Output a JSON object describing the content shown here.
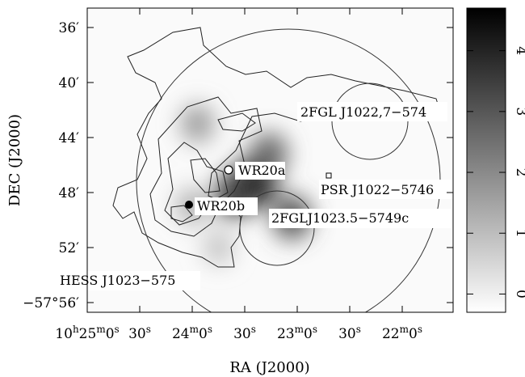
{
  "chart_data": {
    "type": "heatmap",
    "title": "",
    "xlabel": "RA (J2000)",
    "ylabel": "DEC (J2000)",
    "x_ticks": [
      {
        "h": "10",
        "m": "25",
        "s": "0",
        "label_type": "full"
      },
      {
        "s": "30",
        "label_type": "sec"
      },
      {
        "m": "24",
        "s": "0",
        "label_type": "min"
      },
      {
        "s": "30",
        "label_type": "sec"
      },
      {
        "m": "23",
        "s": "0",
        "label_type": "min"
      },
      {
        "s": "30",
        "label_type": "sec"
      },
      {
        "m": "22",
        "s": "0",
        "label_type": "min"
      }
    ],
    "y_ticks": [
      "36′",
      "40′",
      "44′",
      "48′",
      "52′",
      "−57°56′"
    ],
    "colorbar": {
      "ticks": [
        "0",
        "1",
        "2",
        "3",
        "4"
      ],
      "range": [
        -0.3,
        4.7
      ],
      "colormap": "grayscale",
      "low_color": "#ffffff",
      "high_color": "#000000"
    },
    "intensity_blobs": [
      {
        "ra_offset_s": -96,
        "dec_min": 47.2,
        "peak": 4.6
      },
      {
        "ra_offset_s": -84,
        "dec_min": 48.2,
        "peak": 3.6
      },
      {
        "ra_offset_s": -117,
        "dec_min": 49.8,
        "peak": 3.2
      },
      {
        "ra_offset_s": -104,
        "dec_min": 45.2,
        "peak": 2.8
      },
      {
        "ra_offset_s": -63,
        "dec_min": 43.0,
        "peak": 1.8
      },
      {
        "ra_offset_s": -60,
        "dec_min": 49.0,
        "peak": 1.4
      },
      {
        "ra_offset_s": -75,
        "dec_min": 52.0,
        "peak": 1.0
      }
    ],
    "sources": [
      {
        "name": "WR20a",
        "marker": "open-circle",
        "ra_offset_s": -94,
        "dec_min": 46.2
      },
      {
        "name": "WR20b",
        "marker": "filled-circle",
        "ra_offset_s": -111,
        "dec_min": 48.7
      },
      {
        "name": "PSR J1022−5746",
        "marker": "open-square",
        "ra_offset_s": -179,
        "dec_min": 46.5
      }
    ],
    "regions": [
      {
        "name": "2FGL J1022,7−574",
        "shape": "circle",
        "ra_offset_s": -155,
        "dec_min": 43.6
      },
      {
        "name": "2FGLJ1023.5−5749c",
        "shape": "circle",
        "ra_offset_s": -34,
        "dec_min": 50.3
      },
      {
        "name": "HESS J1023−575",
        "shape": "circle",
        "ra_offset_s": -49,
        "dec_min": 47.4
      }
    ]
  }
}
